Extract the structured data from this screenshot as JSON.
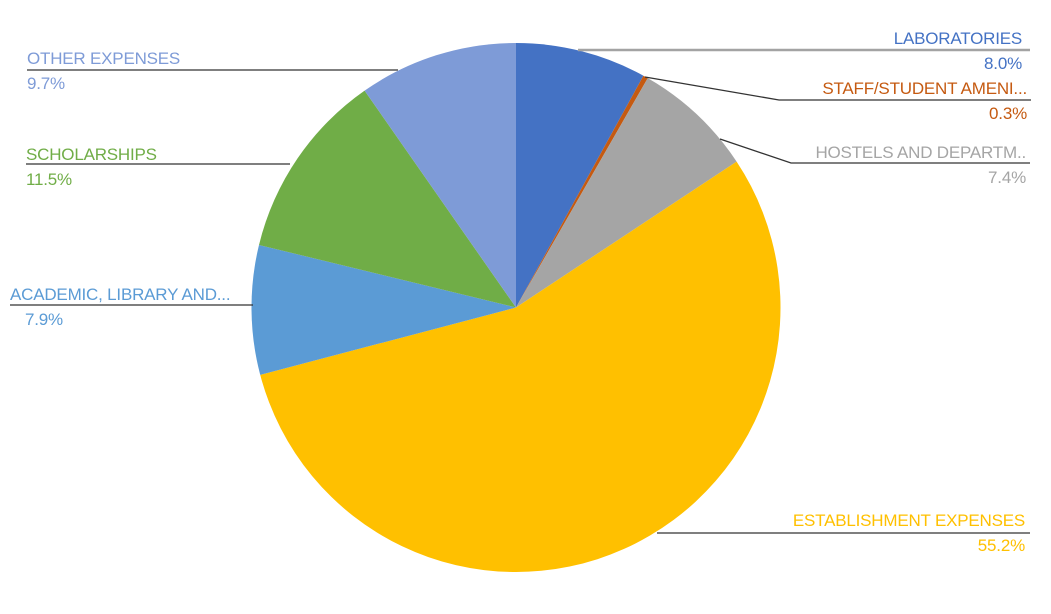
{
  "chart_data": {
    "type": "pie",
    "title": "",
    "categories": [
      "LABORATORIES",
      "STAFF/STUDENT AMENI...",
      "HOSTELS AND DEPARTM..",
      "ESTABLISHMENT EXPENSES",
      "ACADEMIC, LIBRARY AND...",
      "SCHOLARSHIPS",
      "OTHER EXPENSES"
    ],
    "values": [
      8.0,
      0.3,
      7.4,
      55.2,
      7.9,
      11.5,
      9.7
    ],
    "value_labels": [
      "8.0%",
      "0.3%",
      "7.4%",
      "55.2%",
      "7.9%",
      "11.5%",
      "9.7%"
    ],
    "colors": [
      "#4472C4",
      "#C55A11",
      "#A5A5A5",
      "#FFC000",
      "#5B9BD5",
      "#70AD47",
      "#7E9BD7"
    ],
    "start_angle_deg": 0,
    "direction": "clockwise",
    "legend_position": "none",
    "label_style": "outside-callouts-with-leader-lines",
    "background": "#FFFFFF"
  }
}
